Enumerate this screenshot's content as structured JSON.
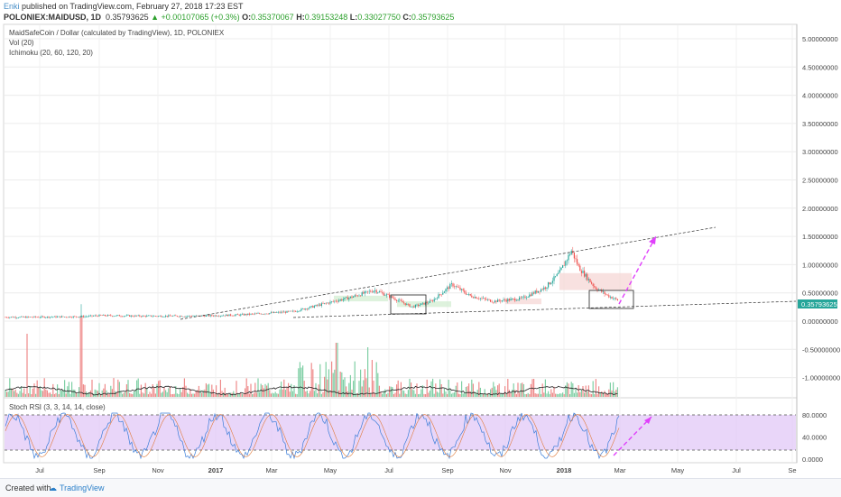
{
  "publish": {
    "author": "Enki",
    "text": "published on TradingView.com, February 27, 2018 17:23 EST"
  },
  "ohlc": {
    "symbol": "POLONIEX:MAIDUSD, 1D",
    "price": "0.35793625",
    "change": "+0.00107065 (+0.3%)",
    "o_label": "O:",
    "o": "0.35370067",
    "h_label": "H:",
    "h": "0.39153248",
    "l_label": "L:",
    "l": "0.33027750",
    "c_label": "C:",
    "c": "0.35793625"
  },
  "legend": {
    "title": "MaidSafeCoin / Dollar (calculated by TradingView), 1D, POLONIEX",
    "vol": "Vol (20)",
    "ichimoku": "Ichimoku (20, 60, 120, 20)",
    "stoch": "Stoch RSI (3, 3, 14, 14, close)"
  },
  "footer": {
    "created_with": "Created with",
    "brand": "TradingView"
  },
  "colors": {
    "up": "#26a69a",
    "down": "#ef5350",
    "rsi_band": "#e1c8f7",
    "arrow": "#e040fb",
    "price_tag": "#26a69a"
  },
  "chart_data": {
    "type": "candlestick",
    "x_ticks": [
      "Jul",
      "Sep",
      "Nov",
      "2017",
      "Mar",
      "May",
      "Jul",
      "Sep",
      "Nov",
      "2018",
      "Mar",
      "May",
      "Jul",
      "Se"
    ],
    "price_axis": {
      "ticks": [
        "5.00000000",
        "4.50000000",
        "4.00000000",
        "3.50000000",
        "3.00000000",
        "2.50000000",
        "2.00000000",
        "1.50000000",
        "1.00000000",
        "0.50000000",
        "0.00000000",
        "-0.50000000",
        "-1.00000000"
      ],
      "range": [
        -1.25,
        5.2
      ]
    },
    "last_price_tag": "0.35793625",
    "stoch_axis": {
      "ticks": [
        "80.0000",
        "40.0000",
        "0.0000"
      ],
      "band": [
        20,
        80
      ]
    },
    "price_series_approx": [
      {
        "x": "2016-06-01",
        "y": 0.07
      },
      {
        "x": "2016-08-01",
        "y": 0.08
      },
      {
        "x": "2016-08-20",
        "y": 0.1
      },
      {
        "x": "2016-10-01",
        "y": 0.09
      },
      {
        "x": "2016-12-01",
        "y": 0.09
      },
      {
        "x": "2017-01-15",
        "y": 0.11
      },
      {
        "x": "2017-02-15",
        "y": 0.14
      },
      {
        "x": "2017-03-15",
        "y": 0.17
      },
      {
        "x": "2017-04-15",
        "y": 0.3
      },
      {
        "x": "2017-05-15",
        "y": 0.42
      },
      {
        "x": "2017-06-10",
        "y": 0.55
      },
      {
        "x": "2017-07-01",
        "y": 0.4
      },
      {
        "x": "2017-07-20",
        "y": 0.25
      },
      {
        "x": "2017-08-10",
        "y": 0.35
      },
      {
        "x": "2017-09-01",
        "y": 0.65
      },
      {
        "x": "2017-09-20",
        "y": 0.45
      },
      {
        "x": "2017-10-15",
        "y": 0.35
      },
      {
        "x": "2017-11-15",
        "y": 0.4
      },
      {
        "x": "2017-12-10",
        "y": 0.6
      },
      {
        "x": "2017-12-25",
        "y": 0.85
      },
      {
        "x": "2018-01-07",
        "y": 1.25
      },
      {
        "x": "2018-01-15",
        "y": 0.95
      },
      {
        "x": "2018-02-01",
        "y": 0.6
      },
      {
        "x": "2018-02-15",
        "y": 0.45
      },
      {
        "x": "2018-02-27",
        "y": 0.36
      }
    ]
  }
}
